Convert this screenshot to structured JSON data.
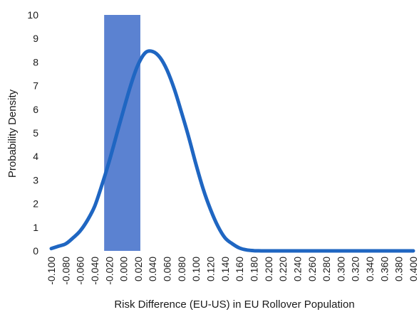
{
  "chart_data": {
    "type": "area",
    "title": "",
    "xlabel": "Risk Difference (EU-US) in EU Rollover Population",
    "ylabel": "Probability Density",
    "xlim": [
      -0.1,
      0.4
    ],
    "ylim": [
      0,
      10
    ],
    "y_ticks": [
      "0",
      "1",
      "2",
      "3",
      "4",
      "5",
      "6",
      "7",
      "8",
      "9",
      "10"
    ],
    "x_ticks": [
      "-0.100",
      "-0.080",
      "-0.060",
      "-0.040",
      "-0.020",
      "0.000",
      "0.020",
      "0.040",
      "0.060",
      "0.080",
      "0.100",
      "0.120",
      "0.140",
      "0.160",
      "0.180",
      "0.200",
      "0.220",
      "0.240",
      "0.260",
      "0.280",
      "0.300",
      "0.320",
      "0.340",
      "0.360",
      "0.380",
      "0.400"
    ],
    "shaded_region": {
      "x_start": -0.027,
      "x_end": 0.023,
      "y_top": 10
    },
    "density_curve": {
      "x": [
        -0.1,
        -0.09,
        -0.08,
        -0.07,
        -0.06,
        -0.05,
        -0.04,
        -0.03,
        -0.02,
        -0.01,
        0.0,
        0.01,
        0.02,
        0.03,
        0.04,
        0.05,
        0.06,
        0.07,
        0.08,
        0.09,
        0.1,
        0.11,
        0.12,
        0.13,
        0.14,
        0.15,
        0.16,
        0.17,
        0.18,
        0.19,
        0.2,
        0.22,
        0.25,
        0.3,
        0.35,
        0.4
      ],
      "y": [
        0.1,
        0.2,
        0.3,
        0.55,
        0.85,
        1.3,
        1.9,
        2.8,
        3.8,
        4.9,
        6.0,
        7.05,
        7.9,
        8.4,
        8.45,
        8.2,
        7.65,
        6.85,
        5.85,
        4.8,
        3.65,
        2.6,
        1.75,
        1.05,
        0.55,
        0.3,
        0.12,
        0.04,
        0.01,
        0.0,
        0.0,
        0.0,
        0.0,
        0.0,
        0.0,
        0.0
      ]
    },
    "colors": {
      "curve": "#1f66c2",
      "shaded": "#5b82d1",
      "text": "#1a1a1a"
    },
    "grid": false,
    "legend": "none"
  }
}
